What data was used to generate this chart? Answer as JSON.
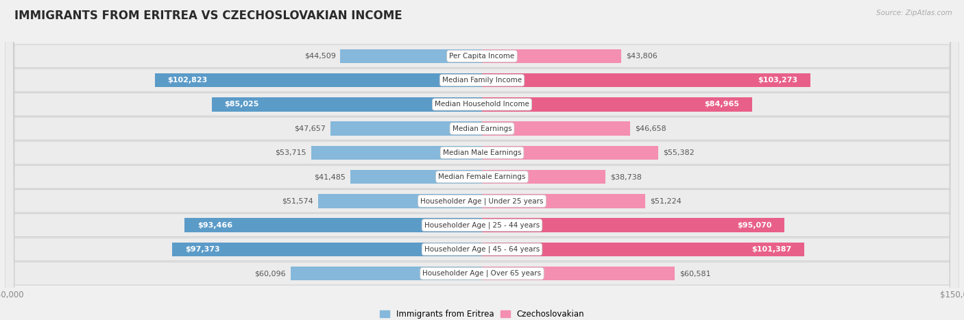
{
  "title": "IMMIGRANTS FROM ERITREA VS CZECHOSLOVAKIAN INCOME",
  "source": "Source: ZipAtlas.com",
  "categories": [
    "Per Capita Income",
    "Median Family Income",
    "Median Household Income",
    "Median Earnings",
    "Median Male Earnings",
    "Median Female Earnings",
    "Householder Age | Under 25 years",
    "Householder Age | 25 - 44 years",
    "Householder Age | 45 - 64 years",
    "Householder Age | Over 65 years"
  ],
  "eritrea_values": [
    44509,
    102823,
    85025,
    47657,
    53715,
    41485,
    51574,
    93466,
    97373,
    60096
  ],
  "czech_values": [
    43806,
    103273,
    84965,
    46658,
    55382,
    38738,
    51224,
    95070,
    101387,
    60581
  ],
  "eritrea_labels": [
    "$44,509",
    "$102,823",
    "$85,025",
    "$47,657",
    "$53,715",
    "$41,485",
    "$51,574",
    "$93,466",
    "$97,373",
    "$60,096"
  ],
  "czech_labels": [
    "$43,806",
    "$103,273",
    "$84,965",
    "$46,658",
    "$55,382",
    "$38,738",
    "$51,224",
    "$95,070",
    "$101,387",
    "$60,581"
  ],
  "eritrea_color": "#85b8db",
  "czech_color": "#f48fb1",
  "eritrea_color_strong": "#5b9bc8",
  "czech_color_strong": "#e8608a",
  "max_value": 150000,
  "bg_color": "#f0f0f0",
  "row_bg_color": "#ececec",
  "title_fontsize": 12,
  "axis_label_fontsize": 8.5,
  "bar_label_fontsize": 8,
  "category_fontsize": 7.5,
  "inside_label_threshold": 65000
}
